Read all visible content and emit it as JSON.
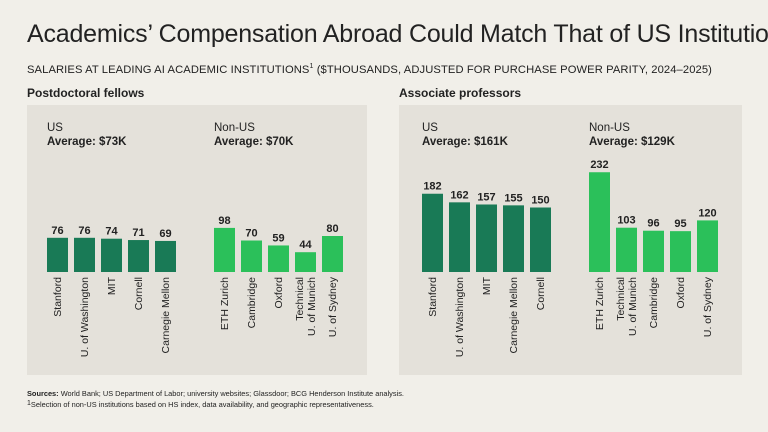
{
  "title": "Academics’ Compensation Abroad Could Match That of US Institutions",
  "subtitle": "SALARIES AT LEADING AI ACADEMIC INSTITUTIONS",
  "subtitle_sup": "1",
  "subtitle_rest": " ($THOUSANDS, ADJUSTED FOR PURCHASE POWER PARITY, 2024–2025)",
  "sources_label": "Sources:",
  "sources_text": " World Bank; US Department of Labor; university websites; Glassdoor; BCG Henderson Institute analysis.",
  "footnote_sup": "1",
  "footnote_text": "Selection of non-US institutions based on HS index, data availability, and geographic representativeness.",
  "colors": {
    "us": "#197a56",
    "nonus": "#2bc05a",
    "panel": "#e4e1da",
    "background": "#f1efe9"
  },
  "chart_data": [
    {
      "type": "bar",
      "title": "Postdoctoral fellows",
      "ylim": [
        0,
        110
      ],
      "groups": [
        {
          "name": "US",
          "average_label": "Average: $73K",
          "color": "#197a56",
          "categories": [
            "Stanford",
            "U. of Washington",
            "MIT",
            "Cornell",
            "Carnegie Mellon"
          ],
          "values": [
            76,
            76,
            74,
            71,
            69
          ]
        },
        {
          "name": "Non-US",
          "average_label": "Average: $70K",
          "color": "#2bc05a",
          "categories": [
            "ETH Zurich",
            "Cambridge",
            "Oxford",
            "Technical U. of Munich",
            "U. of Sydney"
          ],
          "values": [
            98,
            70,
            59,
            44,
            80
          ]
        }
      ]
    },
    {
      "type": "bar",
      "title": "Associate professors",
      "ylim": [
        0,
        260
      ],
      "groups": [
        {
          "name": "US",
          "average_label": "Average: $161K",
          "color": "#197a56",
          "categories": [
            "Stanford",
            "U. of Washington",
            "MIT",
            "Carnegie Mellon",
            "Cornell"
          ],
          "values": [
            182,
            162,
            157,
            155,
            150
          ]
        },
        {
          "name": "Non-US",
          "average_label": "Average: $129K",
          "color": "#2bc05a",
          "categories": [
            "ETH Zurich",
            "Technical U. of Munich",
            "Cambridge",
            "Oxford",
            "U. of Sydney"
          ],
          "values": [
            232,
            103,
            96,
            95,
            120
          ]
        }
      ]
    }
  ]
}
